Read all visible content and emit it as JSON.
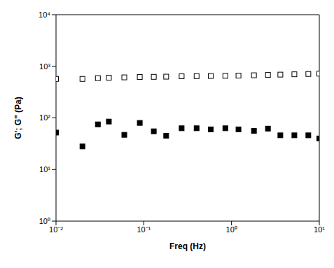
{
  "chart_data": {
    "type": "scatter",
    "xlabel": "Freq (Hz)",
    "ylabel": "G'; G\" (Pa)",
    "log": true,
    "grid": false,
    "xlim": [
      0.01,
      10
    ],
    "ylim": [
      1,
      10000
    ],
    "xticks": [
      {
        "value": 0.01,
        "label": "10⁻²"
      },
      {
        "value": 0.1,
        "label": "10⁻¹"
      },
      {
        "value": 1,
        "label": "10⁰"
      },
      {
        "value": 10,
        "label": "10¹"
      }
    ],
    "yticks": [
      {
        "value": 1,
        "label": "10⁰"
      },
      {
        "value": 10,
        "label": "10¹"
      },
      {
        "value": 100,
        "label": "10²"
      },
      {
        "value": 1000,
        "label": "10³"
      },
      {
        "value": 10000,
        "label": "10⁴"
      }
    ],
    "x": [
      0.01,
      0.02,
      0.03,
      0.04,
      0.06,
      0.09,
      0.13,
      0.18,
      0.27,
      0.4,
      0.58,
      0.85,
      1.2,
      1.8,
      2.6,
      3.6,
      5.2,
      7.5,
      10
    ],
    "series": [
      {
        "color": "#000000",
        "marker": "square-open",
        "values": [
          570,
          570,
          590,
          600,
          610,
          620,
          625,
          630,
          640,
          645,
          650,
          655,
          660,
          670,
          680,
          690,
          700,
          710,
          720
        ]
      },
      {
        "color": "#000000",
        "marker": "square",
        "values": [
          52,
          28,
          75,
          85,
          47,
          80,
          55,
          45,
          63,
          63,
          60,
          63,
          60,
          56,
          62,
          46,
          46,
          46,
          40
        ]
      }
    ]
  }
}
